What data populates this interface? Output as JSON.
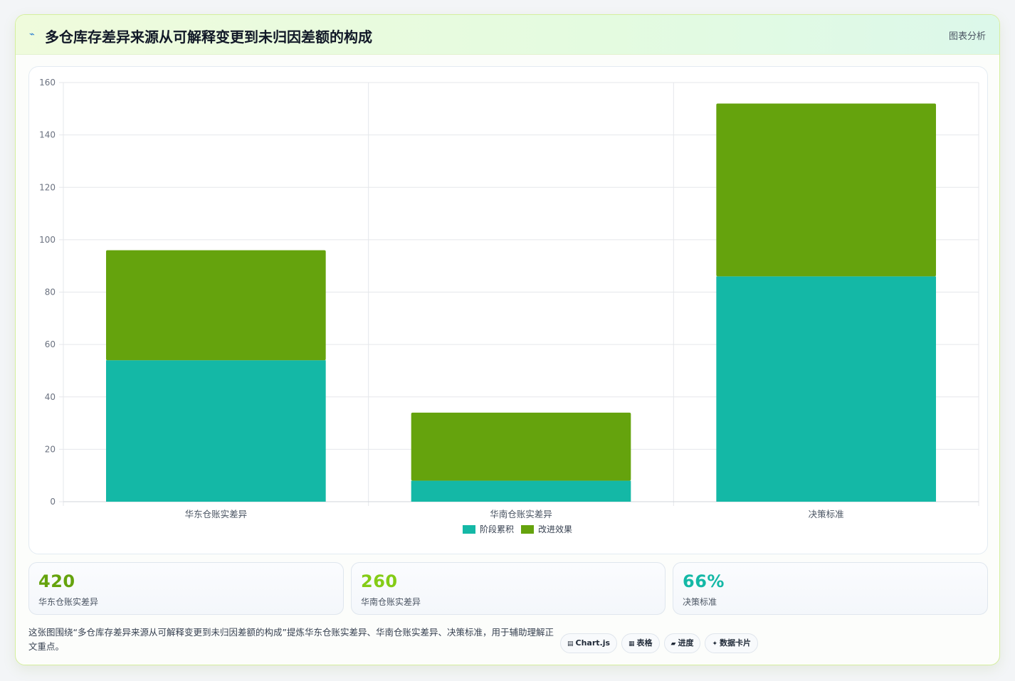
{
  "header": {
    "icon": "sparkline-icon",
    "title": "多仓库存差异来源从可解释变更到未归因差额的构成",
    "link_label": "图表分析"
  },
  "colors": {
    "series_1": "#14b8a6",
    "series_2": "#65a30d",
    "grid": "#e5e7eb",
    "axis_text": "#6b7280"
  },
  "chart_data": {
    "type": "bar",
    "stacked": true,
    "categories": [
      "华东仓账实差异",
      "华南仓账实差异",
      "决策标准"
    ],
    "series": [
      {
        "name": "阶段累积",
        "values": [
          54,
          8,
          86
        ]
      },
      {
        "name": "改进效果",
        "values": [
          42,
          26,
          66
        ]
      }
    ],
    "ylim": [
      0,
      160
    ],
    "yticks": [
      0,
      20,
      40,
      60,
      80,
      100,
      120,
      140,
      160
    ],
    "grid": true,
    "legend_position": "bottom"
  },
  "stats": [
    {
      "value": "420",
      "label": "华东仓账实差异",
      "color": "#65a30d"
    },
    {
      "value": "260",
      "label": "华南仓账实差异",
      "color": "#84cc16"
    },
    {
      "value": "66%",
      "label": "决策标准",
      "color": "#14b8a6"
    }
  ],
  "footnote": "这张图围绕“多仓库存差异来源从可解释变更到未归因差额的构成”提炼华东仓账实差异、华南仓账实差异、决策标准，用于辅助理解正文重点。",
  "chips": [
    {
      "icon": "▤",
      "label": "Chart.js"
    },
    {
      "icon": "▦",
      "label": "表格"
    },
    {
      "icon": "▰",
      "label": "进度"
    },
    {
      "icon": "✦",
      "label": "数据卡片"
    }
  ]
}
